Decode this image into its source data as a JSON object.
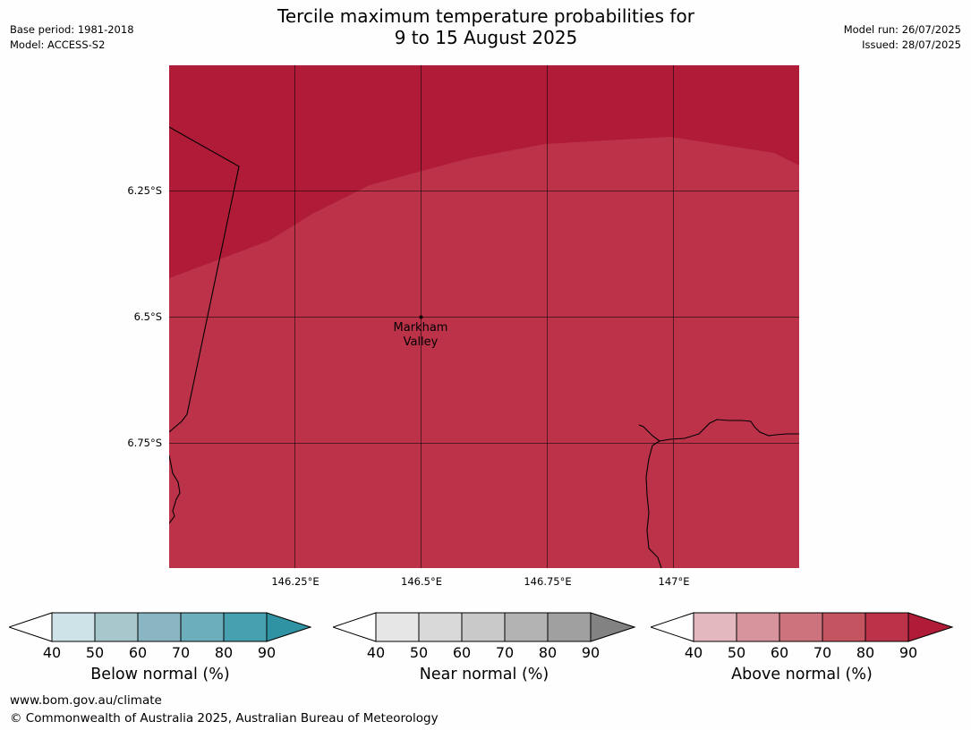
{
  "title_line1": "Tercile maximum temperature probabilities for",
  "title_line2": "9 to 15 August 2025",
  "meta_left": {
    "base_period": "Base period: 1981-2018",
    "model": "Model: ACCESS-S2"
  },
  "meta_right": {
    "model_run": "Model run: 26/07/2025",
    "issued": "Issued: 28/07/2025"
  },
  "map": {
    "lat_labels": [
      "6.25°S",
      "6.5°S",
      "6.75°S"
    ],
    "lon_labels": [
      "146.25°E",
      "146.5°E",
      "146.75°E",
      "147°E"
    ],
    "place_line1": "Markham",
    "place_line2": "Valley",
    "colors": {
      "band_90": "#b01c38",
      "band_80": "#bc3349",
      "coast": "#000000"
    }
  },
  "legends": [
    {
      "title": "Below normal (%)",
      "ticks": [
        "40",
        "50",
        "60",
        "70",
        "80",
        "90"
      ],
      "colors": [
        "#ffffff",
        "#cde3e8",
        "#a8c7cc",
        "#8ab6c3",
        "#6daebd",
        "#46a0b0",
        "#2f93a3"
      ]
    },
    {
      "title": "Near normal (%)",
      "ticks": [
        "40",
        "50",
        "60",
        "70",
        "80",
        "90"
      ],
      "colors": [
        "#ffffff",
        "#e6e6e6",
        "#d9d9d9",
        "#c9c9c9",
        "#b3b3b3",
        "#a0a0a0",
        "#828282"
      ]
    },
    {
      "title": "Above normal (%)",
      "ticks": [
        "40",
        "50",
        "60",
        "70",
        "80",
        "90"
      ],
      "colors": [
        "#ffffff",
        "#e3b8be",
        "#d7949c",
        "#cc737d",
        "#c4545f",
        "#bc3349",
        "#b01c38"
      ]
    }
  ],
  "footer": {
    "url": "www.bom.gov.au/climate",
    "copyright": "© Commonwealth of Australia 2025, Australian Bureau of Meteorology"
  }
}
